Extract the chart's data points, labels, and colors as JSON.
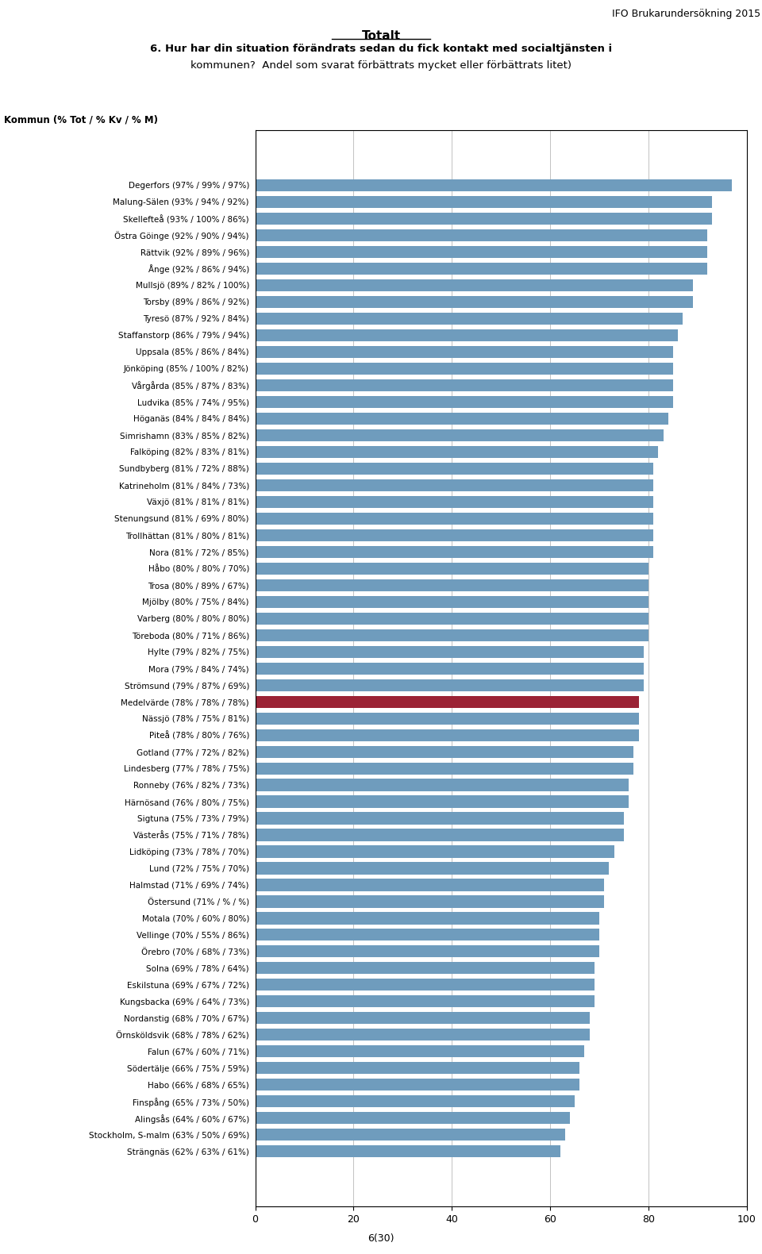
{
  "header_right": "IFO Brukarundersökning 2015",
  "title_main": "Totalt",
  "title_line1": "6. Hur har din situation förändrats sedan du fick kontakt med socialtjänsten i",
  "title_line2": "kommunen?  Andel som svarat förbättrats mycket eller förbättrats litet)",
  "ylabel_header": "Kommun (% Tot / % Kv / % M)",
  "footer": "6(30)",
  "categories": [
    "Degerfors (97% / 99% / 97%)",
    "Malung-Sälen (93% / 94% / 92%)",
    "Skellefteå (93% / 100% / 86%)",
    "Östra Göinge (92% / 90% / 94%)",
    "Rättvik (92% / 89% / 96%)",
    "Ånge (92% / 86% / 94%)",
    "Mullsjö (89% / 82% / 100%)",
    "Torsby (89% / 86% / 92%)",
    "Tyresö (87% / 92% / 84%)",
    "Staffanstorp (86% / 79% / 94%)",
    "Uppsala (85% / 86% / 84%)",
    "Jönköping (85% / 100% / 82%)",
    "Vårgårda (85% / 87% / 83%)",
    "Ludvika (85% / 74% / 95%)",
    "Höganäs (84% / 84% / 84%)",
    "Simrishamn (83% / 85% / 82%)",
    "Falköping (82% / 83% / 81%)",
    "Sundbyberg (81% / 72% / 88%)",
    "Katrineholm (81% / 84% / 73%)",
    "Växjö (81% / 81% / 81%)",
    "Stenungsund (81% / 69% / 80%)",
    "Trollhättan (81% / 80% / 81%)",
    "Nora (81% / 72% / 85%)",
    "Håbo (80% / 80% / 70%)",
    "Trosa (80% / 89% / 67%)",
    "Mjölby (80% / 75% / 84%)",
    "Varberg (80% / 80% / 80%)",
    "Töreboda (80% / 71% / 86%)",
    "Hylte (79% / 82% / 75%)",
    "Mora (79% / 84% / 74%)",
    "Strömsund (79% / 87% / 69%)",
    "Medelvärde (78% / 78% / 78%)",
    "Nässjö (78% / 75% / 81%)",
    "Piteå (78% / 80% / 76%)",
    "Gotland (77% / 72% / 82%)",
    "Lindesberg (77% / 78% / 75%)",
    "Ronneby (76% / 82% / 73%)",
    "Härnösand (76% / 80% / 75%)",
    "Sigtuna (75% / 73% / 79%)",
    "Västerås (75% / 71% / 78%)",
    "Lidköping (73% / 78% / 70%)",
    "Lund (72% / 75% / 70%)",
    "Halmstad (71% / 69% / 74%)",
    "Östersund (71% / % / %)",
    "Motala (70% / 60% / 80%)",
    "Vellinge (70% / 55% / 86%)",
    "Örebro (70% / 68% / 73%)",
    "Solna (69% / 78% / 64%)",
    "Eskilstuna (69% / 67% / 72%)",
    "Kungsbacka (69% / 64% / 73%)",
    "Nordanstig (68% / 70% / 67%)",
    "Örnsköldsvik (68% / 78% / 62%)",
    "Falun (67% / 60% / 71%)",
    "Södertälje (66% / 75% / 59%)",
    "Habo (66% / 68% / 65%)",
    "Finspång (65% / 73% / 50%)",
    "Alingsås (64% / 60% / 67%)",
    "Stockholm, S-malm (63% / 50% / 69%)",
    "Strängnäs (62% / 63% / 61%)"
  ],
  "values": [
    97,
    93,
    93,
    92,
    92,
    92,
    89,
    89,
    87,
    86,
    85,
    85,
    85,
    85,
    84,
    83,
    82,
    81,
    81,
    81,
    81,
    81,
    81,
    80,
    80,
    80,
    80,
    80,
    79,
    79,
    79,
    78,
    78,
    78,
    77,
    77,
    76,
    76,
    75,
    75,
    73,
    72,
    71,
    71,
    70,
    70,
    70,
    69,
    69,
    69,
    68,
    68,
    67,
    66,
    66,
    65,
    64,
    63,
    62
  ],
  "bar_color_normal": "#6f9cbd",
  "bar_color_highlight": "#9b2335",
  "highlight_index": 31,
  "xlim": [
    0,
    100
  ],
  "xticks": [
    0,
    20,
    40,
    60,
    80,
    100
  ],
  "grid_color": "#aaaaaa"
}
